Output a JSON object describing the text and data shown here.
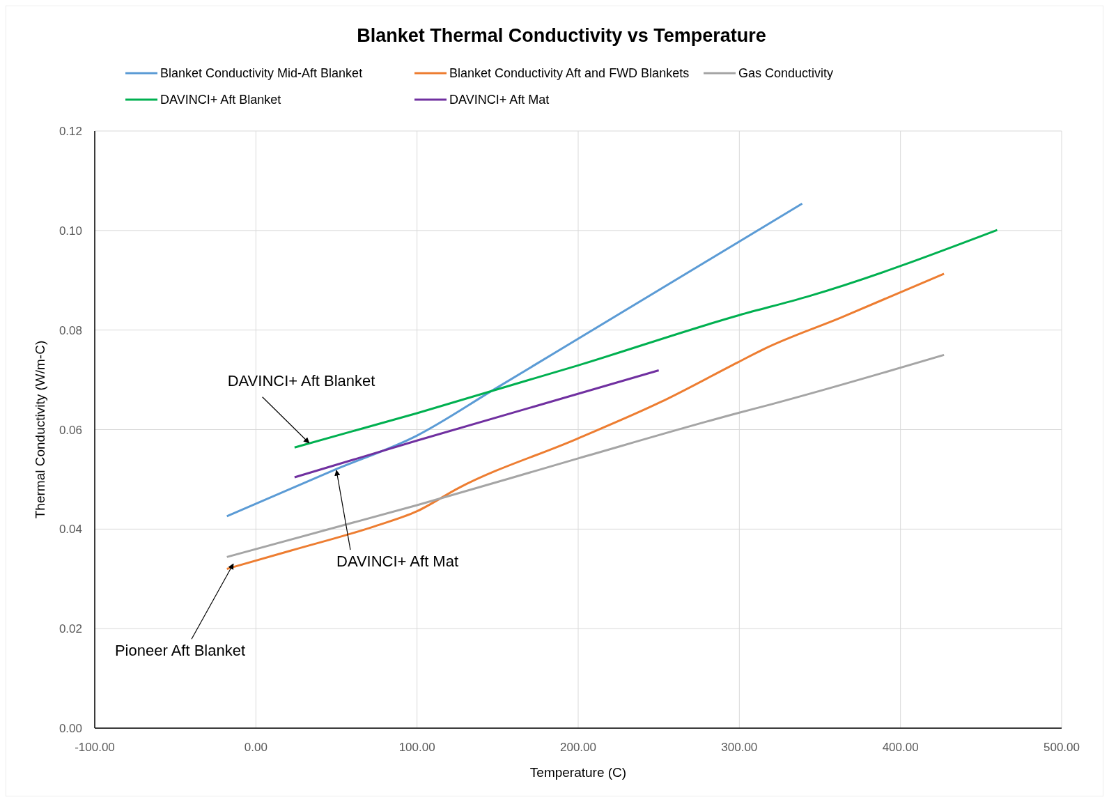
{
  "chart_data": {
    "type": "line",
    "title": "Blanket Thermal Conductivity vs Temperature",
    "xlabel": "Temperature (C)",
    "ylabel": "Thermal Conductivity (W/m-C)",
    "xlim": [
      -100,
      500
    ],
    "xticks": [
      {
        "value": -100,
        "label": "-100.00"
      },
      {
        "value": 0,
        "label": "0.00"
      },
      {
        "value": 100,
        "label": "100.00"
      },
      {
        "value": 200,
        "label": "200.00"
      },
      {
        "value": 300,
        "label": "300.00"
      },
      {
        "value": 400,
        "label": "400.00"
      },
      {
        "value": 500,
        "label": "500.00"
      }
    ],
    "ylim": [
      0,
      0.12
    ],
    "yticks": [
      {
        "value": 0,
        "label": "0.00"
      },
      {
        "value": 0.02,
        "label": "0.02"
      },
      {
        "value": 0.04,
        "label": "0.04"
      },
      {
        "value": 0.06,
        "label": "0.06"
      },
      {
        "value": 0.08,
        "label": "0.08"
      },
      {
        "value": 0.1,
        "label": "0.10"
      },
      {
        "value": 0.12,
        "label": "0.12"
      }
    ],
    "grid": true,
    "legend": "top",
    "marker": "none",
    "line_style": "solid",
    "series": [
      {
        "name": "Blanket Conductivity Mid-Aft Blanket",
        "color": "#5b9bd5",
        "x": [
          -18,
          48,
          100,
          148,
          339
        ],
        "values": [
          0.0426,
          0.0518,
          0.0588,
          0.0681,
          0.1054
        ]
      },
      {
        "name": "Blanket Conductivity Aft and FWD Blankets",
        "color": "#ed7d31",
        "x": [
          -18,
          22,
          74,
          100,
          126,
          199,
          251,
          299,
          316,
          363,
          427
        ],
        "values": [
          0.032,
          0.0357,
          0.0406,
          0.0436,
          0.0483,
          0.0581,
          0.0655,
          0.0735,
          0.0763,
          0.0825,
          0.0913
        ]
      },
      {
        "name": "Gas Conductivity",
        "color": "#a5a5a5",
        "x": [
          -18,
          100,
          200,
          300,
          320,
          427
        ],
        "values": [
          0.0344,
          0.0448,
          0.0542,
          0.0634,
          0.0651,
          0.075
        ]
      },
      {
        "name": "DAVINCI+ Aft Blanket",
        "color": "#00b050",
        "x": [
          24,
          100,
          200,
          300,
          342,
          460
        ],
        "values": [
          0.0564,
          0.0633,
          0.0729,
          0.083,
          0.0867,
          0.1001
        ]
      },
      {
        "name": "DAVINCI+ Aft Mat",
        "color": "#7030a0",
        "x": [
          24,
          100,
          250
        ],
        "values": [
          0.0504,
          0.0578,
          0.0719
        ]
      }
    ],
    "annotations": [
      {
        "text": "DAVINCI+ Aft Blanket",
        "x": 33,
        "y": 0.0573
      },
      {
        "text": "DAVINCI+ Aft Mat",
        "x": 50,
        "y": 0.0518
      },
      {
        "text": "Pioneer Aft Blanket",
        "x": -14,
        "y": 0.033
      }
    ]
  }
}
